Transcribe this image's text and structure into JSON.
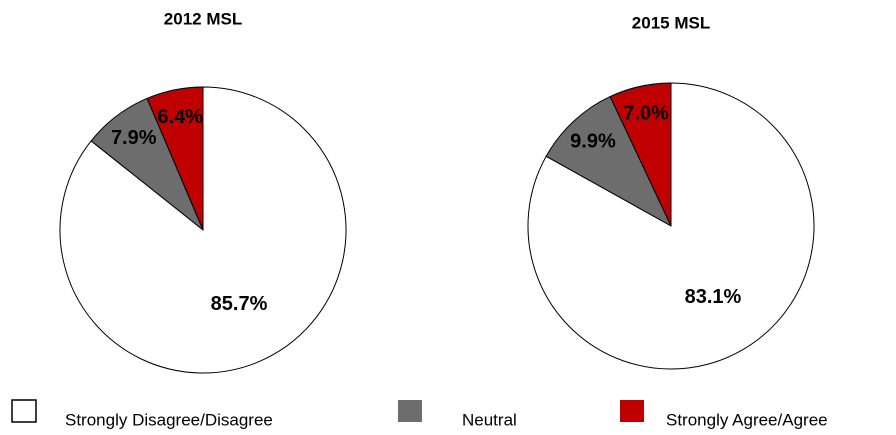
{
  "chart_data": [
    {
      "type": "pie",
      "title": "2012 MSL",
      "categories": [
        "Strongly Disagree/Disagree",
        "Neutral",
        "Strongly Agree/Agree"
      ],
      "values": [
        85.7,
        7.9,
        6.4
      ],
      "value_labels": [
        "85.7%",
        "7.9%",
        "6.4%"
      ],
      "colors": [
        "#ffffff",
        "#6d6d6d",
        "#c00000"
      ]
    },
    {
      "type": "pie",
      "title": "2015 MSL",
      "categories": [
        "Strongly Disagree/Disagree",
        "Neutral",
        "Strongly Agree/Agree"
      ],
      "values": [
        83.1,
        9.9,
        7.0
      ],
      "value_labels": [
        "83.1%",
        "9.9%",
        "7.0%"
      ],
      "colors": [
        "#ffffff",
        "#6d6d6d",
        "#c00000"
      ]
    }
  ]
}
